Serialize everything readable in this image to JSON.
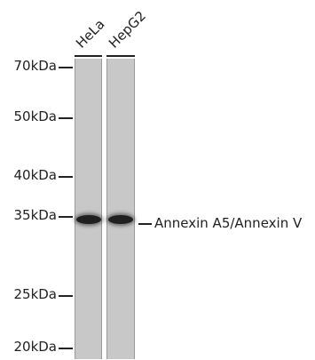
{
  "blot": {
    "lanes": [
      {
        "label": "HeLa"
      },
      {
        "label": "HepG2"
      }
    ],
    "markers": [
      {
        "label": "70kDa"
      },
      {
        "label": "50kDa"
      },
      {
        "label": "40kDa"
      },
      {
        "label": "35kDa"
      },
      {
        "label": "25kDa"
      },
      {
        "label": "20kDa"
      }
    ],
    "band_annotation": "Annexin A5/Annexin V"
  }
}
